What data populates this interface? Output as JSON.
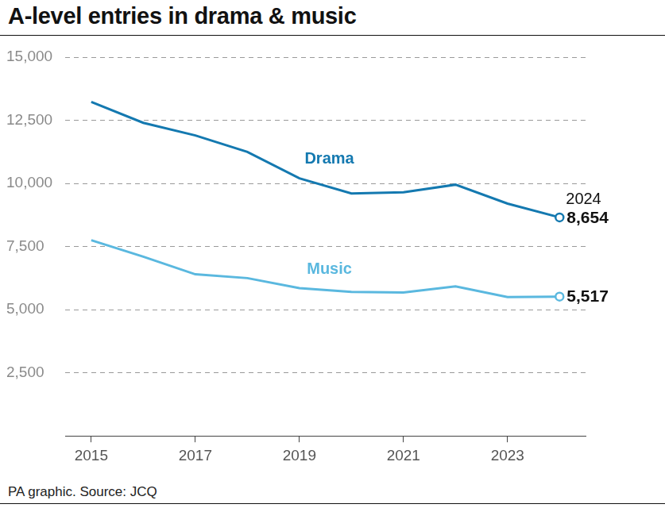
{
  "chart_data": {
    "type": "line",
    "title": "A-level entries in drama & music",
    "source": "PA graphic. Source: JCQ",
    "x": [
      2015,
      2016,
      2017,
      2018,
      2019,
      2020,
      2021,
      2022,
      2023,
      2024
    ],
    "series": [
      {
        "name": "Drama",
        "color": "#1479b0",
        "values": [
          13230,
          12400,
          11900,
          11250,
          10200,
          9600,
          9650,
          9950,
          9200,
          8654
        ],
        "value_labels": [
          null,
          null,
          null,
          null,
          null,
          null,
          null,
          null,
          null,
          "8,654"
        ]
      },
      {
        "name": "Music",
        "color": "#5ab8df",
        "values": [
          7750,
          7100,
          6400,
          6250,
          5850,
          5700,
          5680,
          5920,
          5500,
          5517
        ],
        "value_labels": [
          null,
          null,
          null,
          null,
          null,
          null,
          null,
          null,
          null,
          "5,517"
        ]
      }
    ],
    "annotations": [
      {
        "text": "2024",
        "x": 2024
      }
    ],
    "xlim": [
      2014.5,
      2024.5
    ],
    "xticks": [
      2015,
      2017,
      2019,
      2021,
      2023
    ],
    "ylim": [
      0,
      15000
    ],
    "yticks": [
      {
        "value": 2500,
        "label": "2,500"
      },
      {
        "value": 5000,
        "label": "5,000"
      },
      {
        "value": 7500,
        "label": "7,500"
      },
      {
        "value": 10000,
        "label": "10,000"
      },
      {
        "value": 12500,
        "label": "12,500"
      },
      {
        "value": 15000,
        "label": "15,000"
      }
    ],
    "grid": true,
    "data_labels": true
  }
}
